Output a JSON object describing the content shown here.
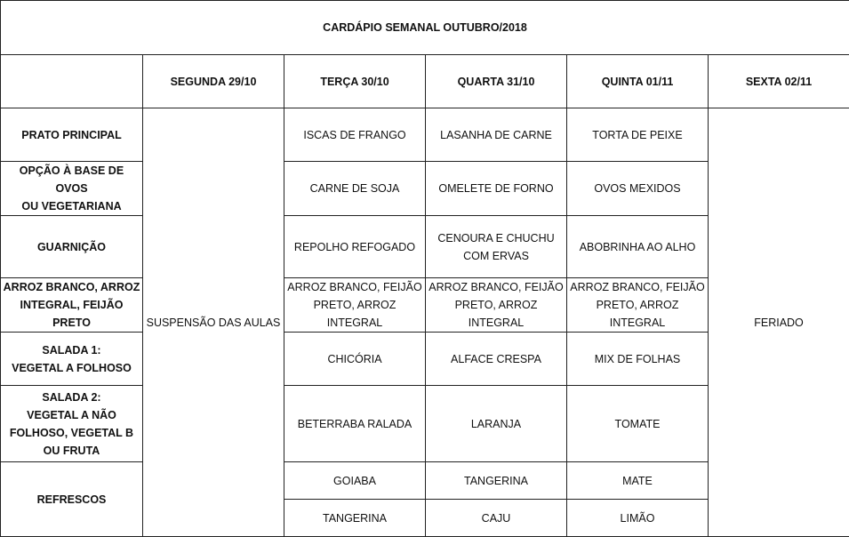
{
  "title": "CARDÁPIO SEMANAL OUTUBRO/2018",
  "days": [
    "SEGUNDA   29/10",
    "TERÇA 30/10",
    "QUARTA 31/10",
    "QUINTA 01/11",
    "SEXTA 02/11"
  ],
  "monday_note": "SUSPENSÃO DAS AULAS",
  "friday_note": "FERIADO",
  "rows": [
    {
      "label": "PRATO PRINCIPAL",
      "values": [
        "ISCAS DE FRANGO",
        "LASANHA DE CARNE",
        "TORTA DE PEIXE"
      ]
    },
    {
      "label": "OPÇÃO À BASE DE OVOS\nOU VEGETARIANA",
      "values": [
        "CARNE DE SOJA",
        "OMELETE DE FORNO",
        "OVOS MEXIDOS"
      ]
    },
    {
      "label": "GUARNIÇÃO",
      "values": [
        "REPOLHO REFOGADO",
        "CENOURA E CHUCHU\nCOM ERVAS",
        "ABOBRINHA AO ALHO"
      ]
    },
    {
      "label": "ARROZ BRANCO, ARROZ\nINTEGRAL, FEIJÃO PRETO",
      "values": [
        "ARROZ BRANCO, FEIJÃO\nPRETO, ARROZ INTEGRAL",
        "ARROZ BRANCO, FEIJÃO\nPRETO, ARROZ INTEGRAL",
        "ARROZ BRANCO, FEIJÃO\nPRETO, ARROZ INTEGRAL"
      ]
    },
    {
      "label": "SALADA 1:\nVEGETAL A FOLHOSO",
      "values": [
        "CHICÓRIA",
        "ALFACE CRESPA",
        "MIX DE FOLHAS"
      ]
    },
    {
      "label": "SALADA 2:\nVEGETAL A NÃO\nFOLHOSO, VEGETAL B\nOU FRUTA",
      "values": [
        "BETERRABA RALADA",
        "LARANJA",
        "TOMATE"
      ]
    }
  ],
  "refrescos": {
    "label": "REFRESCOS",
    "rows": [
      [
        "GOIABA",
        "TANGERINA",
        "MATE"
      ],
      [
        "TANGERINA",
        "CAJU",
        "LIMÃO"
      ]
    ]
  }
}
